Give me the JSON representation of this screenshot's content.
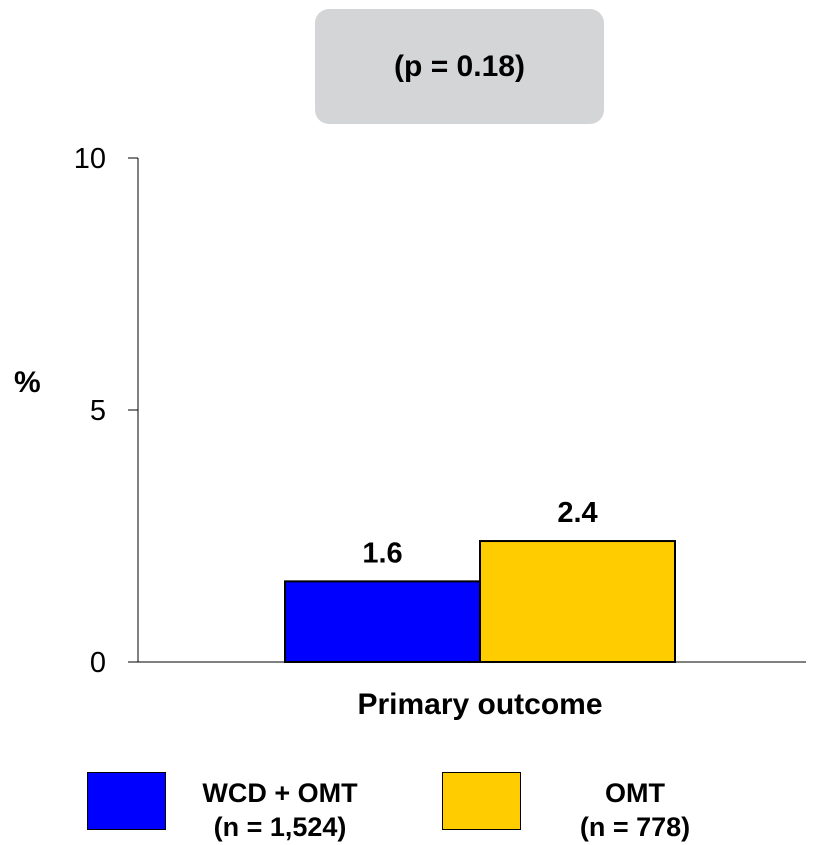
{
  "annotation": {
    "p_value_text": "(p = 0.18)"
  },
  "chart_data": {
    "type": "bar",
    "title": "",
    "ylabel": "%",
    "xlabel": "",
    "ylim": [
      0,
      10
    ],
    "yticks": [
      0,
      5,
      10
    ],
    "categories": [
      "Primary outcome"
    ],
    "series": [
      {
        "name": "WCD + OMT",
        "name_sub": "(n = 1,524)",
        "values": [
          1.6
        ],
        "color": "#0000ff"
      },
      {
        "name": "OMT",
        "name_sub": "(n = 778)",
        "values": [
          2.4
        ],
        "color": "#ffcc00"
      }
    ],
    "data_labels": [
      "1.6",
      "2.4"
    ],
    "legend_position": "bottom",
    "grid": false
  }
}
